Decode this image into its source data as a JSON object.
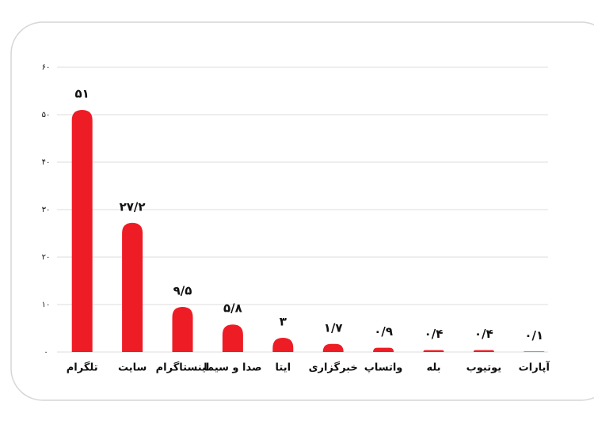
{
  "chart_data": {
    "type": "bar",
    "categories": [
      "تلگرام",
      "سایت",
      "اینستاگرام",
      "صدا و سیما",
      "ایتا",
      "خبرگزاری",
      "واتساپ",
      "بله",
      "یوتیوب",
      "آپارات"
    ],
    "values": [
      51,
      27.2,
      9.5,
      5.8,
      3,
      1.7,
      0.9,
      0.4,
      0.4,
      0.1
    ],
    "value_labels": [
      "۵۱",
      "۲۷/۲",
      "۹/۵",
      "۵/۸",
      "۳",
      "۱/۷",
      "۰/۹",
      "۰/۴",
      "۰/۴",
      "۰/۱"
    ],
    "color": "#ee1c25",
    "ylim": [
      0,
      60
    ],
    "yticks": [
      {
        "value": 0,
        "label": "۰"
      },
      {
        "value": 10,
        "label": "۱۰"
      },
      {
        "value": 20,
        "label": "۲۰"
      },
      {
        "value": 30,
        "label": "۳۰"
      },
      {
        "value": 40,
        "label": "۴۰"
      },
      {
        "value": 50,
        "label": "۵۰"
      },
      {
        "value": 60,
        "label": "۶۰"
      }
    ],
    "grid": true
  }
}
